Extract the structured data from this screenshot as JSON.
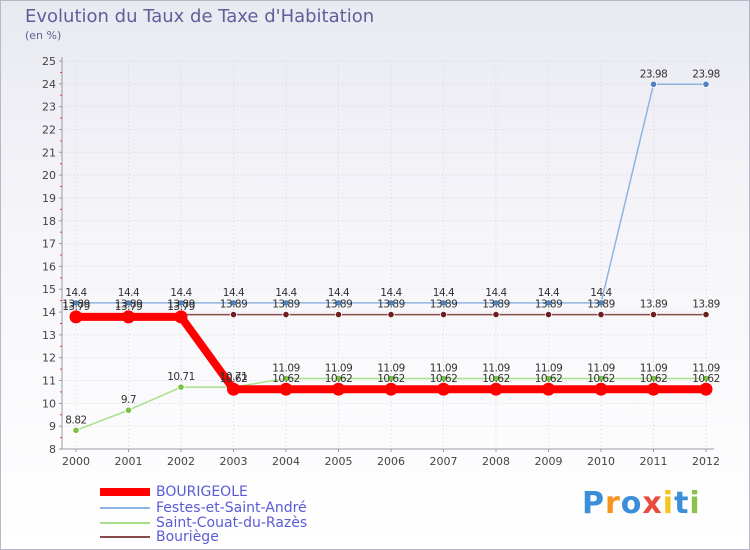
{
  "chart_data": {
    "type": "line",
    "title": "Evolution du Taux de Taxe d'Habitation",
    "subtitle": "(en %)",
    "xlabel": "",
    "ylabel": "(en %)",
    "ylim": [
      8,
      25
    ],
    "yticks": [
      "8",
      "9",
      "10",
      "11",
      "12",
      "13",
      "14",
      "15",
      "16",
      "17",
      "18",
      "19",
      "20",
      "21",
      "22",
      "23",
      "24",
      "25"
    ],
    "x": [
      "2000",
      "2001",
      "2002",
      "2003",
      "2004",
      "2005",
      "2006",
      "2007",
      "2008",
      "2009",
      "2010",
      "2011",
      "2012"
    ],
    "grid": true,
    "legend_position": "bottom-left",
    "series": [
      {
        "name": "BOURIGEOLE",
        "color": "#ff0000",
        "values": [
          13.79,
          13.79,
          13.79,
          10.62,
          10.62,
          10.62,
          10.62,
          10.62,
          10.62,
          10.62,
          10.62,
          10.62,
          10.62
        ],
        "labels": [
          "13.79",
          "13.79",
          "13.79",
          "10.62",
          "10.62",
          "10.62",
          "10.62",
          "10.62",
          "10.62",
          "10.62",
          "10.62",
          "10.62",
          "10.62"
        ]
      },
      {
        "name": "Festes-et-Saint-André",
        "color": "#8db4e2",
        "marker_color": "#4f81bd",
        "values": [
          14.4,
          14.4,
          14.4,
          14.4,
          14.4,
          14.4,
          14.4,
          14.4,
          14.4,
          14.4,
          14.4,
          23.98,
          23.98
        ],
        "labels": [
          "14.4",
          "14.4",
          "14.4",
          "14.4",
          "14.4",
          "14.4",
          "14.4",
          "14.4",
          "14.4",
          "14.4",
          "14.4",
          "23.98",
          "23.98"
        ]
      },
      {
        "name": "Saint-Couat-du-Razès",
        "color": "#a8e08a",
        "marker_color": "#7ac142",
        "values": [
          8.82,
          9.7,
          10.71,
          10.71,
          11.09,
          11.09,
          11.09,
          11.09,
          11.09,
          11.09,
          11.09,
          11.09,
          11.09
        ],
        "labels": [
          "8.82",
          "9.7",
          "10.71",
          "10.71",
          "11.09",
          "11.09",
          "11.09",
          "11.09",
          "11.09",
          "11.09",
          "11.09",
          "11.09",
          "11.09"
        ]
      },
      {
        "name": "Bouriège",
        "color": "#8b4a4a",
        "marker_color": "#6b1f1f",
        "values": [
          13.89,
          13.89,
          13.89,
          13.89,
          13.89,
          13.89,
          13.89,
          13.89,
          13.89,
          13.89,
          13.89,
          13.89,
          13.89
        ],
        "labels": [
          "13.89",
          "13.89",
          "13.89",
          "13.89",
          "13.89",
          "13.89",
          "13.89",
          "13.89",
          "13.89",
          "13.89",
          "13.89",
          "13.89",
          "13.89"
        ]
      }
    ]
  },
  "logo": {
    "letters": [
      "P",
      "r",
      "o",
      "x",
      "i",
      "t",
      "i"
    ],
    "colors": [
      "#3b8fd9",
      "#f7941d",
      "#3b8fd9",
      "#e84c3d",
      "#f7c41d",
      "#3b8fd9",
      "#8bc34a"
    ]
  }
}
